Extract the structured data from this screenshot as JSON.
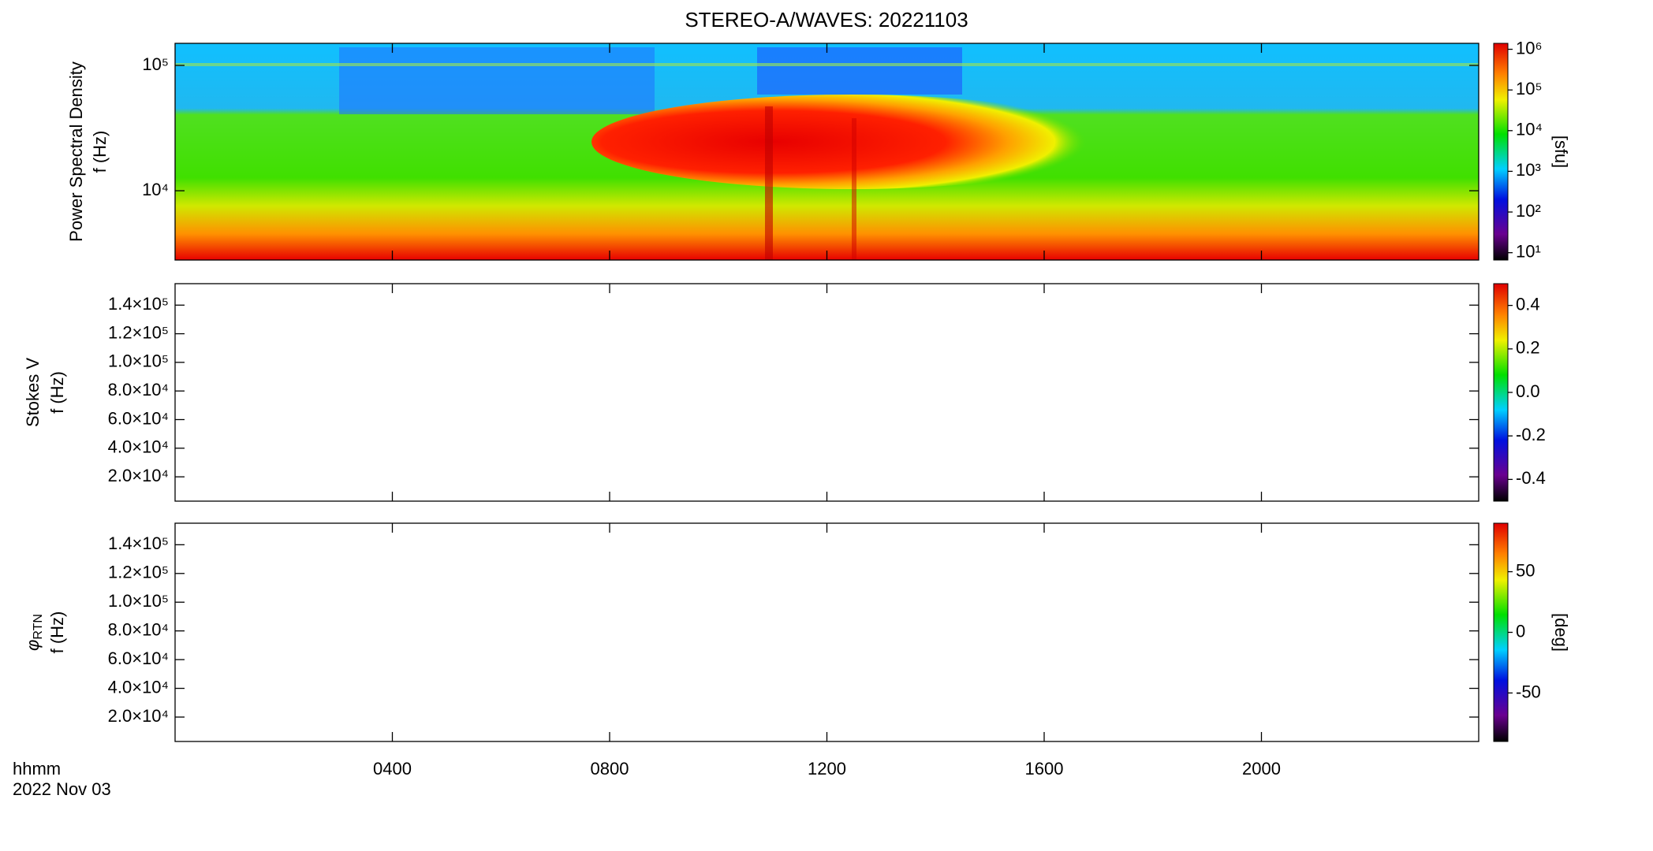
{
  "chart_data": [
    {
      "type": "spectrogram",
      "title": "STEREO-A/WAVES: 20221103",
      "ylabel": "Power Spectral Density",
      "ylabel2": "f (Hz)",
      "log": true,
      "ylim": [
        2800,
        150000
      ],
      "yticks": [
        {
          "value": 10000,
          "label": "10⁴"
        },
        {
          "value": 100000,
          "label": "10⁵"
        }
      ],
      "colorbar": {
        "log": true,
        "lim": [
          6.6,
          1400000
        ],
        "label": "[sfu]",
        "ticks": [
          {
            "value": 10,
            "label": "10¹"
          },
          {
            "value": 100,
            "label": "10²"
          },
          {
            "value": 1000,
            "label": "10³"
          },
          {
            "value": 10000,
            "label": "10⁴"
          },
          {
            "value": 100000,
            "label": "10⁵"
          },
          {
            "value": 1000000,
            "label": "10⁶"
          }
        ]
      }
    },
    {
      "type": "spectrogram",
      "ylabel": "Stokes V",
      "ylabel2": "f (Hz)",
      "log": false,
      "ylim": [
        3000,
        155000
      ],
      "yticks": [
        {
          "value": 20000,
          "label": "2.0×10⁴"
        },
        {
          "value": 40000,
          "label": "4.0×10⁴"
        },
        {
          "value": 60000,
          "label": "6.0×10⁴"
        },
        {
          "value": 80000,
          "label": "8.0×10⁴"
        },
        {
          "value": 100000,
          "label": "1.0×10⁵"
        },
        {
          "value": 120000,
          "label": "1.2×10⁵"
        },
        {
          "value": 140000,
          "label": "1.4×10⁵"
        }
      ],
      "colorbar": {
        "log": false,
        "lim": [
          -0.5,
          0.5
        ],
        "ticks": [
          -0.4,
          -0.2,
          {
            "value": 0,
            "label": "0.0"
          },
          0.2,
          0.4
        ]
      }
    },
    {
      "type": "spectrogram",
      "ylabel_symbol": "φ",
      "ylabel_subscript": "RTN",
      "ylabel2": "f (Hz)",
      "log": false,
      "ylim": [
        3000,
        155000
      ],
      "yticks": [
        {
          "value": 20000,
          "label": "2.0×10⁴"
        },
        {
          "value": 40000,
          "label": "4.0×10⁴"
        },
        {
          "value": 60000,
          "label": "6.0×10⁴"
        },
        {
          "value": 80000,
          "label": "8.0×10⁴"
        },
        {
          "value": 100000,
          "label": "1.0×10⁵"
        },
        {
          "value": 120000,
          "label": "1.2×10⁵"
        },
        {
          "value": 140000,
          "label": "1.4×10⁵"
        }
      ],
      "colorbar": {
        "log": false,
        "lim": [
          -90,
          90
        ],
        "label": "[deg]",
        "ticks": [
          -50,
          0,
          50
        ]
      },
      "xlim": [
        0,
        24
      ],
      "xlabel": "hhmm",
      "date": "2022 Nov 03",
      "xticks": [
        {
          "value": 4,
          "label": "0400"
        },
        {
          "value": 8,
          "label": "0800"
        },
        {
          "value": 12,
          "label": "1200"
        },
        {
          "value": 16,
          "label": "1600"
        },
        {
          "value": 20,
          "label": "2000"
        }
      ]
    }
  ]
}
